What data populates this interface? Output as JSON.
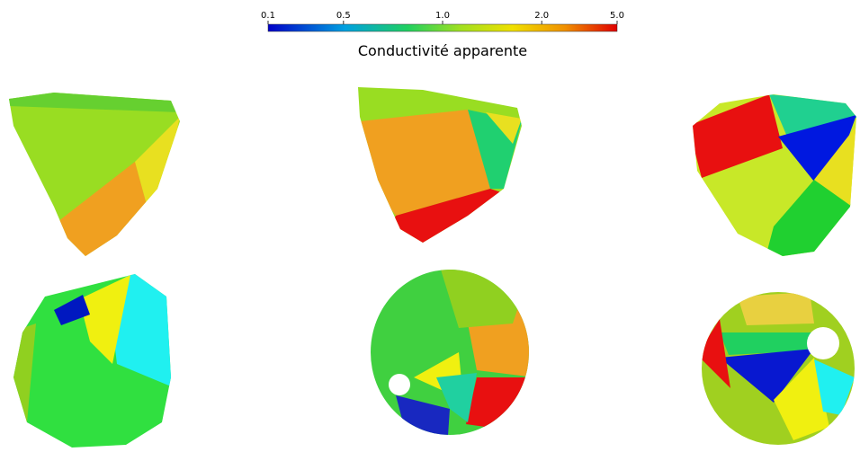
{
  "colorbar": {
    "title": "Conductivité apparente",
    "ticks": [
      0.1,
      0.5,
      {
        "value": 1.0,
        "label": "1.0"
      },
      {
        "value": 2.0,
        "label": "2.0"
      },
      {
        "value": 5.0,
        "label": "5.0"
      }
    ]
  }
}
